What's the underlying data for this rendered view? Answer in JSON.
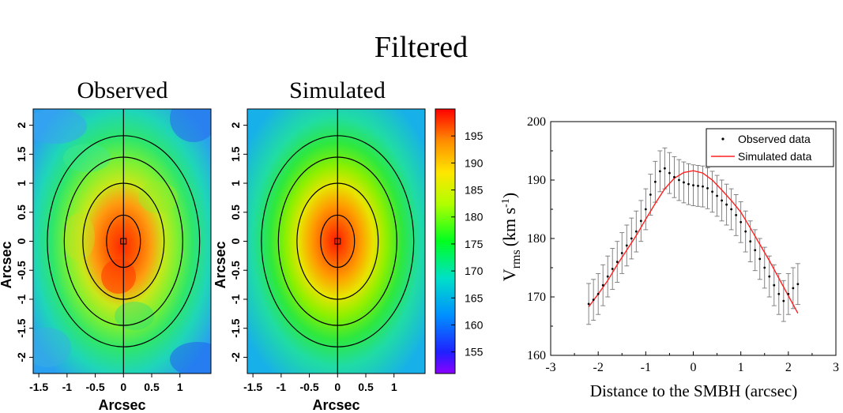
{
  "figure": {
    "title": "Filtered"
  },
  "chart_data": [
    {
      "type": "heatmap",
      "title": "Observed",
      "xlabel": "Arcsec",
      "ylabel": "Arcsec",
      "x_ticks": [
        "-1.5",
        "-1",
        "-0.5",
        "0",
        "0.5",
        "1"
      ],
      "y_ticks": [
        "2",
        "1.5",
        "1",
        "0.5",
        "0",
        "-0.5",
        "-1",
        "-1.5",
        "-2"
      ],
      "xlim": [
        -1.6,
        1.55
      ],
      "ylim": [
        -2.28,
        2.28
      ],
      "center_value": 198,
      "edge_value": 165,
      "contour_semi_axes": [
        [
          0.3,
          0.45
        ],
        [
          0.72,
          1.0
        ],
        [
          1.05,
          1.45
        ],
        [
          1.35,
          1.82
        ]
      ],
      "center_marker": "square"
    },
    {
      "type": "heatmap",
      "title": "Simulated",
      "xlabel": "Arcsec",
      "ylabel": "Arcsec",
      "x_ticks": [
        "-1.5",
        "-1",
        "-0.5",
        "0",
        "0.5",
        "1"
      ],
      "y_ticks": [
        "2",
        "1.5",
        "1",
        "0.5",
        "0",
        "-0.5",
        "-1",
        "-1.5",
        "-2"
      ],
      "xlim": [
        -1.6,
        1.55
      ],
      "ylim": [
        -2.28,
        2.28
      ],
      "center_value": 198,
      "edge_value": 163,
      "contour_semi_axes": [
        [
          0.3,
          0.45
        ],
        [
          0.72,
          1.0
        ],
        [
          1.05,
          1.45
        ],
        [
          1.35,
          1.82
        ]
      ],
      "center_marker": "square"
    },
    {
      "type": "colorbar",
      "ticks": [
        "195",
        "190",
        "185",
        "180",
        "175",
        "170",
        "165",
        "160",
        "155"
      ],
      "range": [
        151,
        200
      ],
      "colors": [
        "#8b00ff",
        "#0000ff",
        "#00a0ff",
        "#00e0c0",
        "#00ff00",
        "#c8ff00",
        "#ffff00",
        "#ff9900",
        "#ff0000"
      ]
    },
    {
      "type": "line",
      "xlabel": "Distance to the SMBH (arcsec)",
      "ylabel_main": "V",
      "ylabel_sub": "rms",
      "ylabel_units": "(km s",
      "ylabel_exp": "-1",
      "ylabel_close": ")",
      "xlim": [
        -3,
        3
      ],
      "ylim": [
        160,
        200
      ],
      "x_ticks": [
        "-3",
        "-2",
        "-1",
        "0",
        "1",
        "2",
        "3"
      ],
      "y_ticks": [
        "160",
        "170",
        "180",
        "190",
        "200"
      ],
      "legend": {
        "observed": "Observed data",
        "simulated": "Simulated data",
        "position": "top-right"
      },
      "observed_error": 3.5,
      "series": [
        {
          "name": "Observed data",
          "style": "points-with-errorbars",
          "color": "#000000",
          "x": [
            -2.2,
            -2.1,
            -2.0,
            -1.9,
            -1.8,
            -1.7,
            -1.6,
            -1.5,
            -1.4,
            -1.3,
            -1.2,
            -1.1,
            -1.0,
            -0.9,
            -0.8,
            -0.7,
            -0.6,
            -0.5,
            -0.4,
            -0.3,
            -0.2,
            -0.1,
            0.0,
            0.1,
            0.2,
            0.3,
            0.4,
            0.5,
            0.6,
            0.7,
            0.8,
            0.9,
            1.0,
            1.1,
            1.2,
            1.3,
            1.4,
            1.5,
            1.6,
            1.7,
            1.8,
            1.9,
            2.0,
            2.1,
            2.2
          ],
          "y": [
            168.8,
            169.5,
            170.5,
            172.0,
            173.5,
            174.8,
            176.0,
            177.5,
            178.8,
            180.0,
            181.2,
            183.0,
            185.0,
            187.5,
            189.7,
            191.5,
            192.0,
            191.2,
            190.5,
            190.0,
            189.6,
            189.3,
            189.1,
            189.0,
            188.9,
            188.6,
            188.0,
            187.3,
            186.5,
            185.8,
            185.0,
            184.0,
            182.8,
            181.2,
            179.5,
            178.0,
            176.5,
            175.0,
            173.5,
            172.0,
            170.5,
            169.3,
            170.5,
            171.5,
            172.2
          ]
        },
        {
          "name": "Simulated data",
          "style": "line",
          "color": "#ff2020",
          "x": [
            -2.2,
            -2.0,
            -1.8,
            -1.6,
            -1.4,
            -1.2,
            -1.0,
            -0.8,
            -0.6,
            -0.4,
            -0.2,
            0.0,
            0.2,
            0.4,
            0.6,
            0.8,
            1.0,
            1.2,
            1.4,
            1.6,
            1.8,
            2.0,
            2.2
          ],
          "y": [
            168.3,
            170.5,
            172.8,
            175.5,
            178.0,
            180.5,
            183.3,
            186.0,
            188.5,
            190.3,
            191.3,
            191.6,
            191.2,
            190.0,
            188.3,
            186.5,
            184.5,
            181.8,
            179.0,
            176.2,
            173.2,
            170.2,
            167.2
          ]
        }
      ]
    }
  ]
}
